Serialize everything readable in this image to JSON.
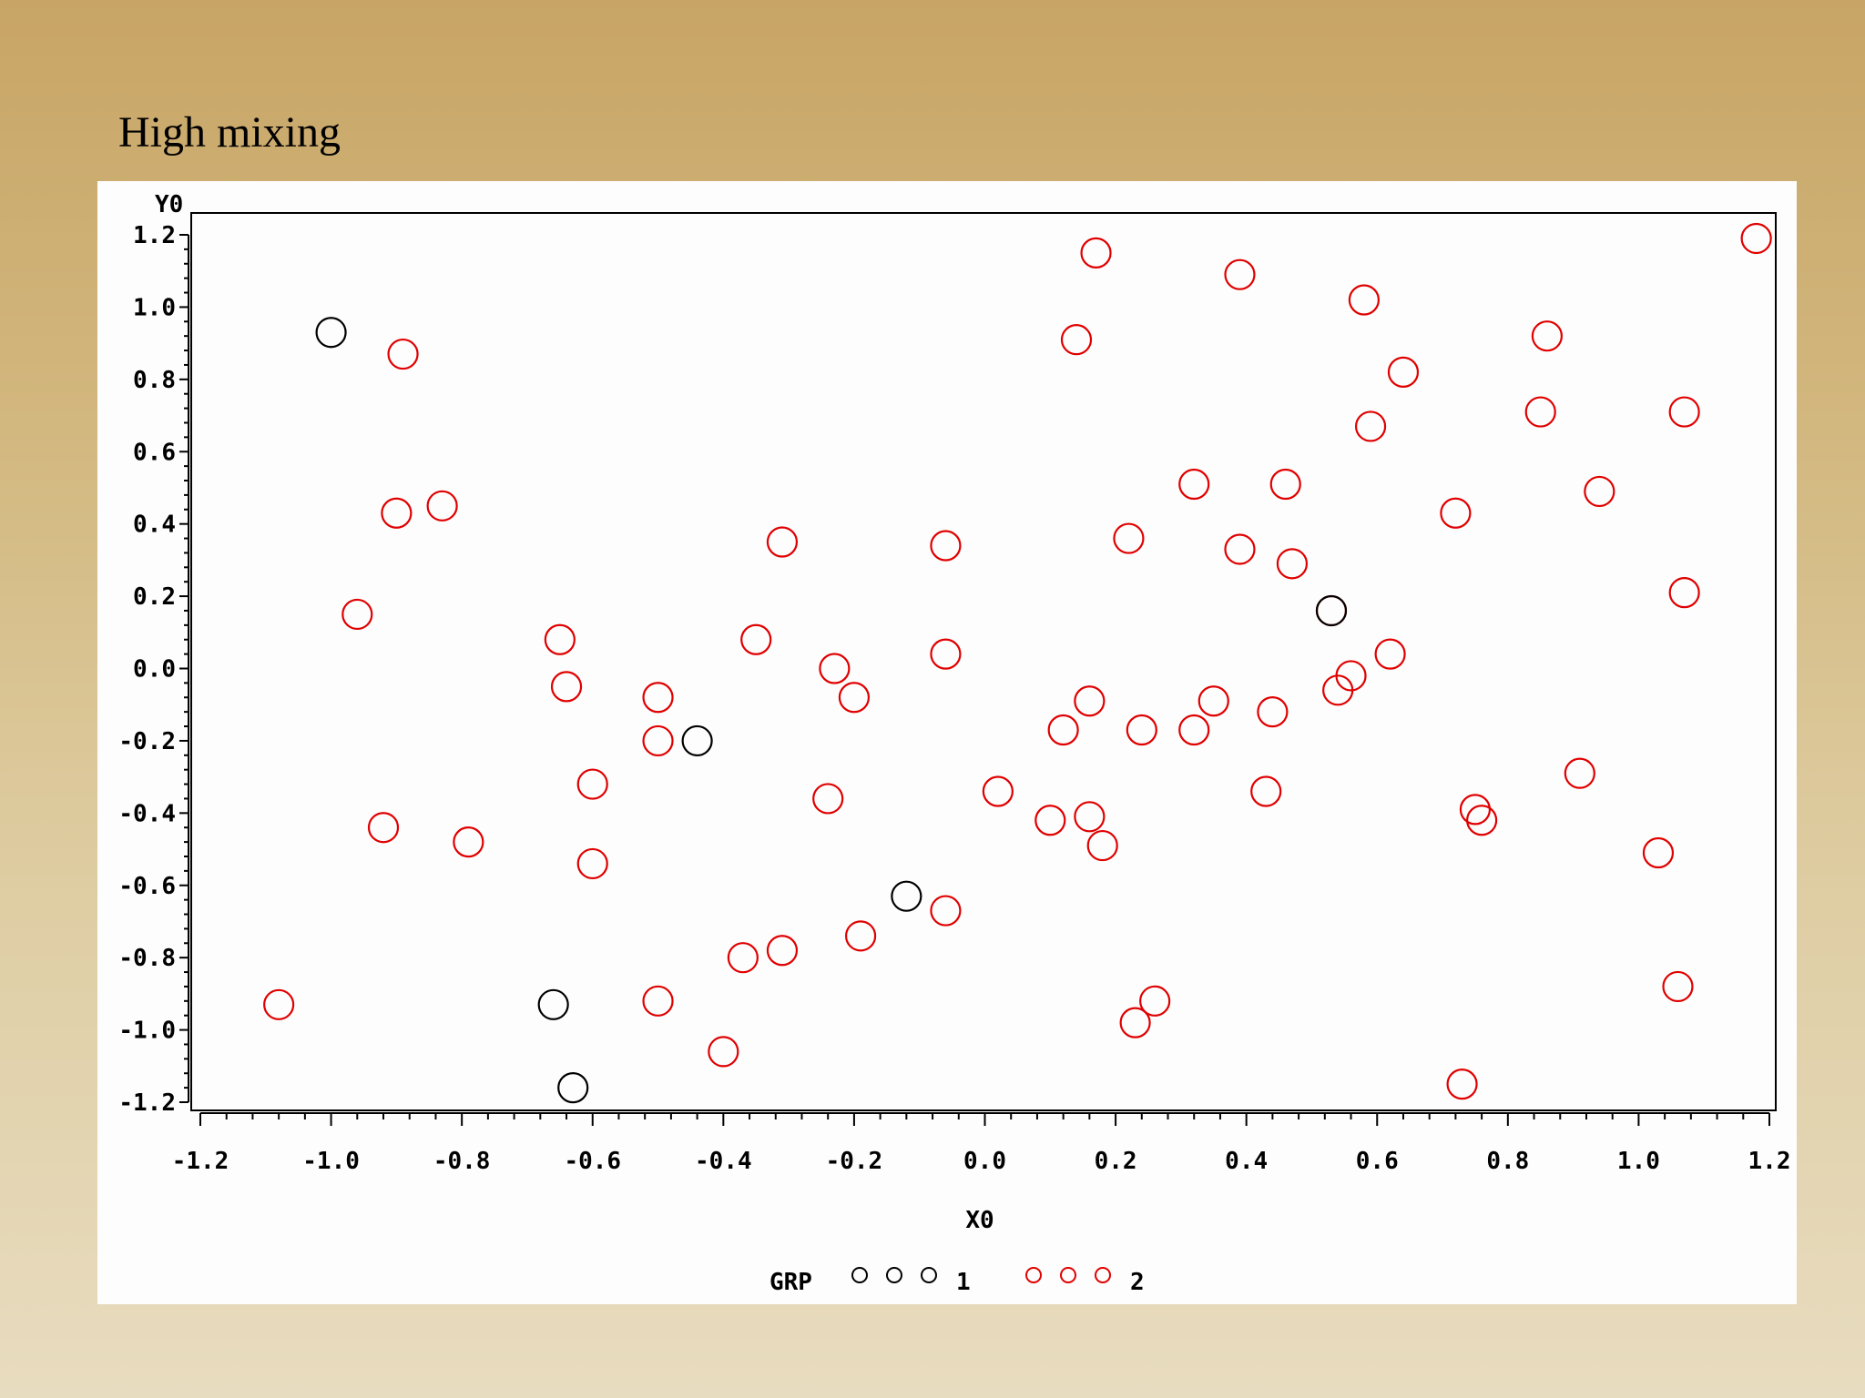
{
  "slide": {
    "title": "High mixing"
  },
  "chart_data": {
    "type": "scatter",
    "xlabel": "X0",
    "ylabel": "Y0",
    "xlim": [
      -1.2,
      1.2
    ],
    "ylim": [
      -1.2,
      1.2
    ],
    "x_ticks": [
      "-1.2",
      "-1.0",
      "-0.8",
      "-0.6",
      "-0.4",
      "-0.2",
      "0.0",
      "0.2",
      "0.4",
      "0.6",
      "0.8",
      "1.0",
      "1.2"
    ],
    "y_ticks": [
      "-1.2",
      "-1.0",
      "-0.8",
      "-0.6",
      "-0.4",
      "-0.2",
      "0.0",
      "0.2",
      "0.4",
      "0.6",
      "0.8",
      "1.0",
      "1.2"
    ],
    "grid": false,
    "legend": {
      "title": "GRP",
      "position": "bottom"
    },
    "series": [
      {
        "name": "1",
        "color": "#000000",
        "points": [
          [
            -1.0,
            0.93
          ],
          [
            -0.44,
            -0.2
          ],
          [
            -0.12,
            -0.63
          ],
          [
            -0.66,
            -0.93
          ],
          [
            -0.63,
            -1.16
          ],
          [
            0.53,
            0.16
          ]
        ]
      },
      {
        "name": "2",
        "color": "#e00000",
        "points": [
          [
            -0.89,
            0.87
          ],
          [
            -0.9,
            0.43
          ],
          [
            -0.83,
            0.45
          ],
          [
            -0.96,
            0.15
          ],
          [
            -0.65,
            0.08
          ],
          [
            -0.64,
            -0.05
          ],
          [
            -0.31,
            0.35
          ],
          [
            -0.35,
            0.08
          ],
          [
            -0.5,
            -0.08
          ],
          [
            -0.5,
            -0.2
          ],
          [
            -0.6,
            -0.32
          ],
          [
            -0.6,
            -0.54
          ],
          [
            -0.92,
            -0.44
          ],
          [
            -0.79,
            -0.48
          ],
          [
            -1.08,
            -0.93
          ],
          [
            -0.5,
            -0.92
          ],
          [
            -0.37,
            -0.8
          ],
          [
            -0.31,
            -0.78
          ],
          [
            -0.4,
            -1.06
          ],
          [
            -0.23,
            0.0
          ],
          [
            -0.2,
            -0.08
          ],
          [
            -0.24,
            -0.36
          ],
          [
            -0.19,
            -0.74
          ],
          [
            -0.06,
            0.34
          ],
          [
            -0.06,
            0.04
          ],
          [
            -0.06,
            -0.67
          ],
          [
            0.02,
            -0.34
          ],
          [
            0.1,
            -0.42
          ],
          [
            0.12,
            -0.17
          ],
          [
            0.16,
            -0.09
          ],
          [
            0.16,
            -0.41
          ],
          [
            0.18,
            -0.49
          ],
          [
            0.14,
            0.91
          ],
          [
            0.17,
            1.15
          ],
          [
            0.22,
            0.36
          ],
          [
            0.24,
            -0.17
          ],
          [
            0.23,
            -0.98
          ],
          [
            0.26,
            -0.92
          ],
          [
            0.32,
            0.51
          ],
          [
            0.32,
            -0.17
          ],
          [
            0.35,
            -0.09
          ],
          [
            0.39,
            1.09
          ],
          [
            0.39,
            0.33
          ],
          [
            0.43,
            -0.34
          ],
          [
            0.44,
            -0.12
          ],
          [
            0.46,
            0.51
          ],
          [
            0.47,
            0.29
          ],
          [
            0.53,
            0.16
          ],
          [
            0.54,
            -0.06
          ],
          [
            0.56,
            -0.02
          ],
          [
            0.58,
            1.02
          ],
          [
            0.59,
            0.67
          ],
          [
            0.62,
            0.04
          ],
          [
            0.64,
            0.82
          ],
          [
            0.72,
            0.43
          ],
          [
            0.73,
            -1.15
          ],
          [
            0.75,
            -0.39
          ],
          [
            0.76,
            -0.42
          ],
          [
            0.85,
            0.71
          ],
          [
            0.86,
            0.92
          ],
          [
            0.91,
            -0.29
          ],
          [
            0.94,
            0.49
          ],
          [
            1.03,
            -0.51
          ],
          [
            1.06,
            -0.88
          ],
          [
            1.07,
            0.71
          ],
          [
            1.07,
            0.21
          ],
          [
            1.18,
            1.19
          ]
        ]
      }
    ]
  }
}
